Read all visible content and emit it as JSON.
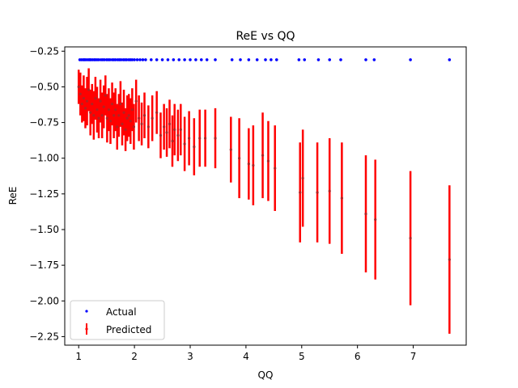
{
  "chart_data": {
    "type": "scatter",
    "title": "ReE vs QQ",
    "xlabel": "QQ",
    "ylabel": "ReE",
    "xlim": [
      0.75,
      7.95
    ],
    "ylim": [
      -2.31,
      -0.22
    ],
    "xticks": [
      1,
      2,
      3,
      4,
      5,
      6,
      7
    ],
    "yticks": [
      -2.25,
      -2.0,
      -1.75,
      -1.5,
      -1.25,
      -1.0,
      -0.75,
      -0.5,
      -0.25
    ],
    "grid": false,
    "legend": {
      "position": "lower-left",
      "entries": [
        {
          "label": "Actual",
          "color": "#0000ff",
          "marker": "dot"
        },
        {
          "label": "Predicted",
          "color": "#ff0000",
          "marker": "errorbar"
        }
      ]
    },
    "series": [
      {
        "name": "Actual",
        "color": "#0000ff",
        "kind": "scatter",
        "x": [
          1.02,
          1.05,
          1.08,
          1.1,
          1.12,
          1.15,
          1.18,
          1.2,
          1.22,
          1.25,
          1.28,
          1.3,
          1.33,
          1.36,
          1.4,
          1.43,
          1.46,
          1.5,
          1.53,
          1.56,
          1.6,
          1.63,
          1.66,
          1.7,
          1.73,
          1.76,
          1.8,
          1.83,
          1.86,
          1.9,
          1.93,
          1.96,
          2.0,
          2.05,
          2.1,
          2.15,
          2.2,
          2.3,
          2.4,
          2.5,
          2.6,
          2.7,
          2.8,
          2.9,
          3.0,
          3.1,
          3.2,
          3.3,
          3.45,
          3.75,
          3.9,
          4.05,
          4.2,
          4.35,
          4.45,
          4.55,
          4.95,
          5.05,
          5.3,
          5.5,
          5.7,
          6.15,
          6.3,
          6.95,
          7.65
        ],
        "y": [
          -0.31,
          -0.31,
          -0.31,
          -0.31,
          -0.31,
          -0.31,
          -0.31,
          -0.31,
          -0.31,
          -0.31,
          -0.31,
          -0.31,
          -0.31,
          -0.31,
          -0.31,
          -0.31,
          -0.31,
          -0.31,
          -0.31,
          -0.31,
          -0.31,
          -0.31,
          -0.31,
          -0.31,
          -0.31,
          -0.31,
          -0.31,
          -0.31,
          -0.31,
          -0.31,
          -0.31,
          -0.31,
          -0.31,
          -0.31,
          -0.31,
          -0.31,
          -0.31,
          -0.31,
          -0.31,
          -0.31,
          -0.31,
          -0.31,
          -0.31,
          -0.31,
          -0.31,
          -0.31,
          -0.31,
          -0.31,
          -0.31,
          -0.31,
          -0.31,
          -0.31,
          -0.31,
          -0.31,
          -0.31,
          -0.31,
          -0.31,
          -0.31,
          -0.31,
          -0.31,
          -0.31,
          -0.31,
          -0.31,
          -0.31,
          -0.31
        ]
      },
      {
        "name": "Predicted",
        "color": "#ff0000",
        "kind": "errorbar",
        "x": [
          1.0,
          1.03,
          1.06,
          1.09,
          1.12,
          1.15,
          1.18,
          1.21,
          1.24,
          1.27,
          1.3,
          1.33,
          1.36,
          1.39,
          1.42,
          1.45,
          1.48,
          1.51,
          1.54,
          1.57,
          1.6,
          1.63,
          1.66,
          1.69,
          1.72,
          1.75,
          1.78,
          1.81,
          1.84,
          1.87,
          1.9,
          1.93,
          1.96,
          1.99,
          2.03,
          2.08,
          2.13,
          2.18,
          2.25,
          2.32,
          2.4,
          2.47,
          2.53,
          2.58,
          2.63,
          2.68,
          2.72,
          2.78,
          2.83,
          2.9,
          2.98,
          3.07,
          3.17,
          3.27,
          3.45,
          3.73,
          3.88,
          4.05,
          4.13,
          4.3,
          4.4,
          4.52,
          4.97,
          5.02,
          5.28,
          5.5,
          5.72,
          6.15,
          6.32,
          6.95,
          7.65
        ],
        "y": [
          -0.5,
          -0.55,
          -0.62,
          -0.58,
          -0.65,
          -0.6,
          -0.52,
          -0.68,
          -0.62,
          -0.7,
          -0.58,
          -0.66,
          -0.72,
          -0.6,
          -0.7,
          -0.64,
          -0.56,
          -0.72,
          -0.66,
          -0.74,
          -0.62,
          -0.7,
          -0.66,
          -0.78,
          -0.7,
          -0.62,
          -0.76,
          -0.68,
          -0.8,
          -0.72,
          -0.7,
          -0.74,
          -0.66,
          -0.78,
          -0.6,
          -0.72,
          -0.76,
          -0.7,
          -0.78,
          -0.72,
          -0.68,
          -0.84,
          -0.78,
          -0.82,
          -0.76,
          -0.88,
          -0.8,
          -0.84,
          -0.8,
          -0.9,
          -0.86,
          -0.92,
          -0.86,
          -0.86,
          -0.86,
          -0.94,
          -1.0,
          -1.04,
          -1.05,
          -0.98,
          -1.02,
          -1.07,
          -1.24,
          -1.14,
          -1.24,
          -1.23,
          -1.28,
          -1.39,
          -1.43,
          -1.56,
          -1.71
        ],
        "err": [
          0.12,
          0.15,
          0.13,
          0.16,
          0.14,
          0.17,
          0.15,
          0.16,
          0.14,
          0.17,
          0.15,
          0.16,
          0.14,
          0.15,
          0.16,
          0.15,
          0.14,
          0.17,
          0.15,
          0.16,
          0.15,
          0.16,
          0.15,
          0.16,
          0.15,
          0.16,
          0.15,
          0.16,
          0.15,
          0.16,
          0.15,
          0.16,
          0.15,
          0.16,
          0.15,
          0.16,
          0.15,
          0.16,
          0.15,
          0.16,
          0.15,
          0.16,
          0.16,
          0.17,
          0.17,
          0.18,
          0.18,
          0.18,
          0.18,
          0.19,
          0.19,
          0.2,
          0.2,
          0.2,
          0.21,
          0.23,
          0.28,
          0.25,
          0.28,
          0.3,
          0.28,
          0.3,
          0.35,
          0.34,
          0.35,
          0.37,
          0.39,
          0.41,
          0.42,
          0.47,
          0.52
        ]
      }
    ]
  }
}
